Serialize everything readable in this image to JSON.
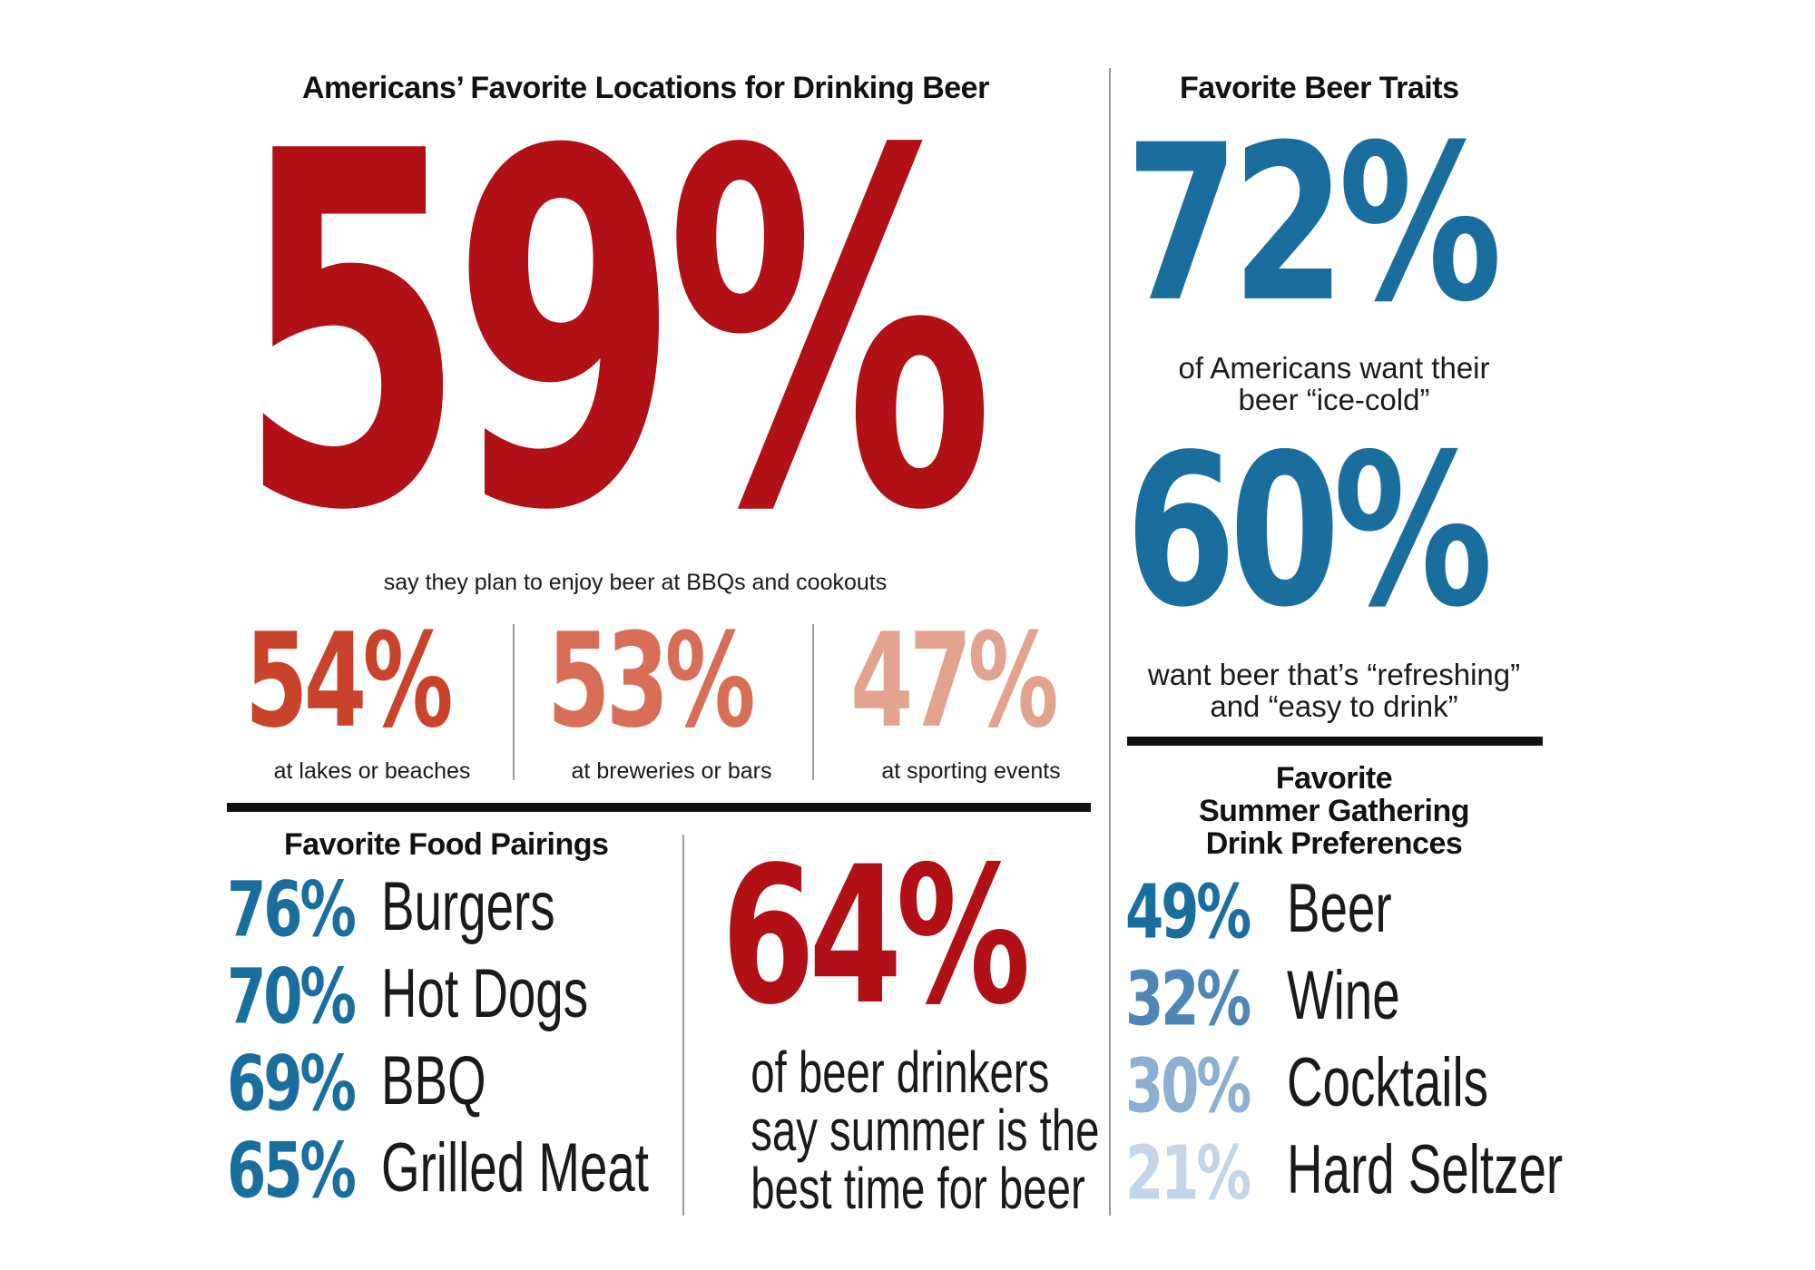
{
  "colors": {
    "red": "#b01016",
    "red_mid": "#c9432c",
    "red_light": "#d86e58",
    "red_pale": "#e3a48f",
    "blue": "#1a6e9e",
    "blue_mid": "#4f86b5",
    "blue_light": "#8dafd2",
    "blue_pale": "#c4d5e8"
  },
  "locations": {
    "title": "Americans’ Favorite Locations for Drinking Beer",
    "main_stat": "59%",
    "main_caption": "say they plan to enjoy beer at BBQs and cookouts",
    "items": [
      {
        "value": "54%",
        "label": "at lakes or beaches"
      },
      {
        "value": "53%",
        "label": "at breweries or bars"
      },
      {
        "value": "47%",
        "label": "at sporting events"
      }
    ]
  },
  "traits": {
    "title": "Favorite Beer Traits",
    "stat1": "72%",
    "caption1": "of Americans want their beer “ice-cold”",
    "stat2": "60%",
    "caption2": "want beer that’s “refreshing” and “easy to drink”"
  },
  "food": {
    "title": "Favorite Food Pairings",
    "items": [
      {
        "value": "76%",
        "label": "Burgers"
      },
      {
        "value": "70%",
        "label": "Hot Dogs"
      },
      {
        "value": "69%",
        "label": "BBQ"
      },
      {
        "value": "65%",
        "label": "Grilled Meat"
      }
    ]
  },
  "summer": {
    "stat": "64%",
    "caption_l1": "of beer drinkers",
    "caption_l2": "say summer is the",
    "caption_l3": "best time for beer"
  },
  "drinks": {
    "title_l1": "Favorite",
    "title_l2": "Summer Gathering",
    "title_l3": "Drink Preferences",
    "items": [
      {
        "value": "49%",
        "label": "Beer"
      },
      {
        "value": "32%",
        "label": "Wine"
      },
      {
        "value": "30%",
        "label": "Cocktails"
      },
      {
        "value": "21%",
        "label": "Hard Seltzer"
      }
    ]
  }
}
